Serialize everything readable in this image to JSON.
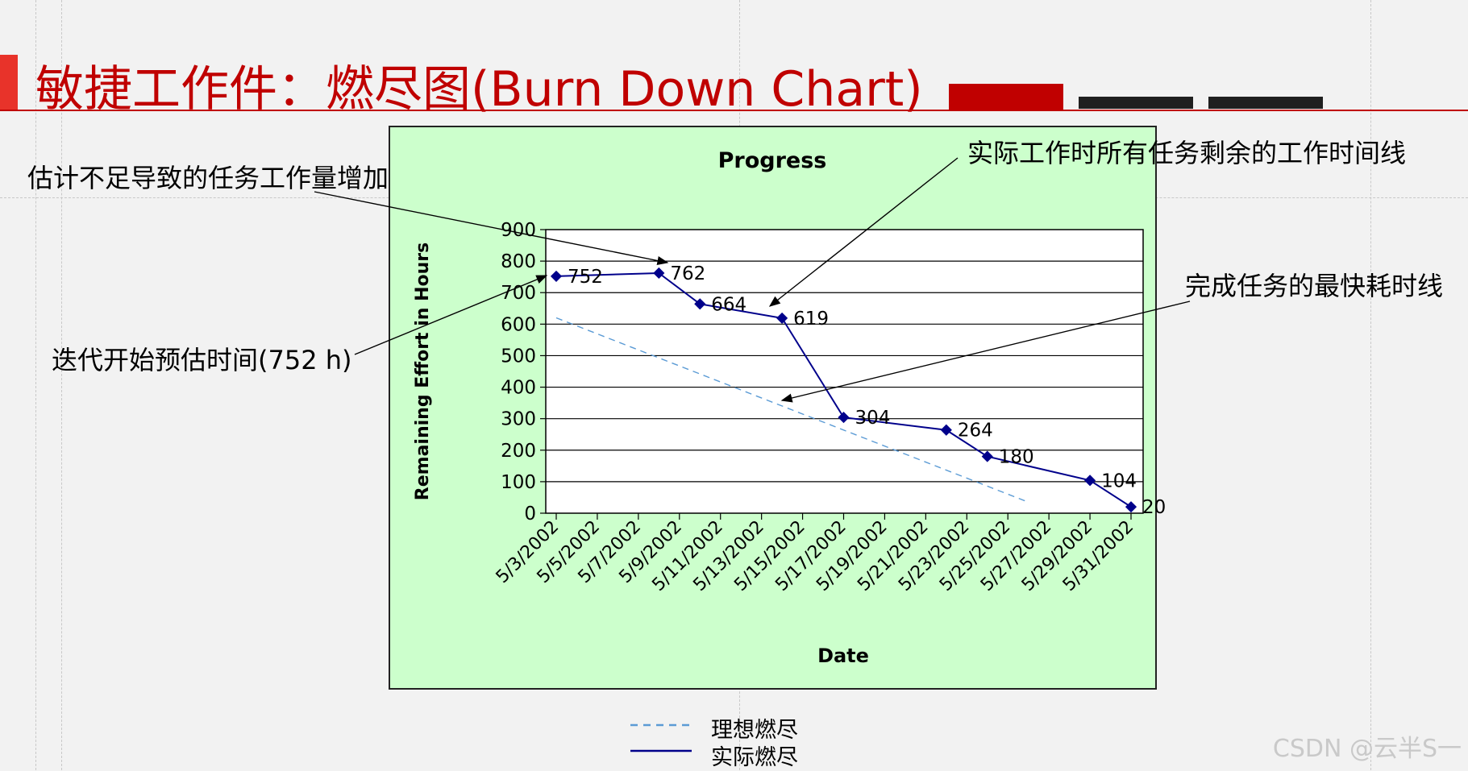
{
  "slide": {
    "title": "敏捷工作件：燃尽图(Burn Down Chart)",
    "accent_color": "#c00000",
    "bars": [
      "#c00000",
      "#1f1f1f",
      "#1f1f1f"
    ]
  },
  "annotations": {
    "underestimate": "估计不足导致的任务工作量增加",
    "actual_line": "实际工作时所有任务剩余的工作时间线",
    "ideal_line": "完成任务的最快耗时线",
    "start_estimate": "迭代开始预估时间(752 h)"
  },
  "legend": {
    "ideal": "理想燃尽",
    "actual": "实际燃尽"
  },
  "watermark": "CSDN @云半S一",
  "chart_data": {
    "type": "line",
    "title": "Progress",
    "xlabel": "Date",
    "ylabel": "Remaining Effort in Hours",
    "ylim": [
      0,
      900
    ],
    "yticks": [
      0,
      100,
      200,
      300,
      400,
      500,
      600,
      700,
      800,
      900
    ],
    "xlim": [
      "5/3/2002",
      "5/31/2002"
    ],
    "xticks": [
      "5/3/2002",
      "5/5/2002",
      "5/7/2002",
      "5/9/2002",
      "5/11/2002",
      "5/13/2002",
      "5/15/2002",
      "5/17/2002",
      "5/19/2002",
      "5/21/2002",
      "5/23/2002",
      "5/25/2002",
      "5/27/2002",
      "5/29/2002",
      "5/31/2002"
    ],
    "grid": "horizontal",
    "background": "#ccffcc",
    "series": [
      {
        "name": "实际燃尽",
        "style": "solid",
        "color": "#00008b",
        "points": [
          {
            "x": "5/3/2002",
            "y": 752,
            "label": "752"
          },
          {
            "x": "5/8/2002",
            "y": 762,
            "label": "762"
          },
          {
            "x": "5/10/2002",
            "y": 664,
            "label": "664"
          },
          {
            "x": "5/14/2002",
            "y": 619,
            "label": "619"
          },
          {
            "x": "5/17/2002",
            "y": 304,
            "label": "304"
          },
          {
            "x": "5/22/2002",
            "y": 264,
            "label": "264"
          },
          {
            "x": "5/24/2002",
            "y": 180,
            "label": "180"
          },
          {
            "x": "5/29/2002",
            "y": 104,
            "label": "104"
          },
          {
            "x": "5/31/2002",
            "y": 20,
            "label": "20"
          }
        ]
      },
      {
        "name": "理想燃尽",
        "style": "dashed",
        "color": "#5b9bd5",
        "points": [
          {
            "x": "5/3/2002",
            "y": 620
          },
          {
            "x": "5/26/2002",
            "y": 35
          }
        ]
      }
    ]
  }
}
